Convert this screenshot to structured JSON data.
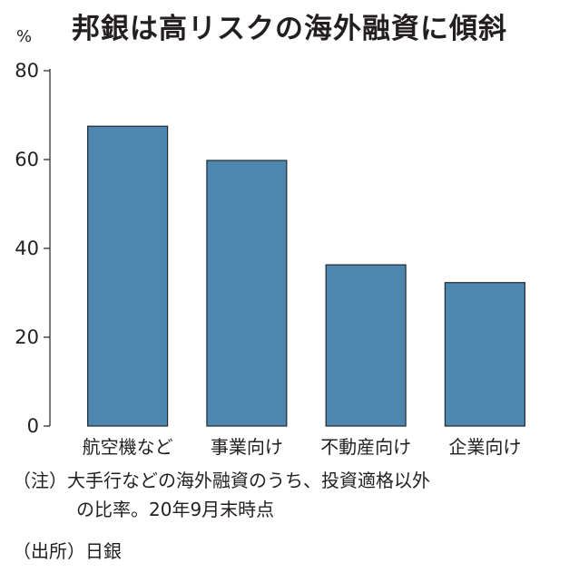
{
  "title": "邦銀は高リスクの海外融資に傾斜",
  "unit_label": "%",
  "notes": {
    "note_line1": "（注）大手行などの海外融資のうち、投資適格以外",
    "note_line2": "の比率。20年9月末時点",
    "source": "（出所）日銀"
  },
  "chart_data": {
    "type": "bar",
    "title": "邦銀は高リスクの海外融資に傾斜",
    "ylabel": "%",
    "xlabel": "",
    "categories": [
      "航空機など",
      "事業向け",
      "不動産向け",
      "企業向け"
    ],
    "values": [
      67.5,
      59.8,
      36.3,
      32.3
    ],
    "ylim": [
      0,
      80
    ],
    "yticks": [
      0,
      20,
      40,
      60,
      80
    ],
    "bar_color": "#4d86ae",
    "bar_edge_color": "#1f2a33",
    "grid": false,
    "legend": "none"
  }
}
